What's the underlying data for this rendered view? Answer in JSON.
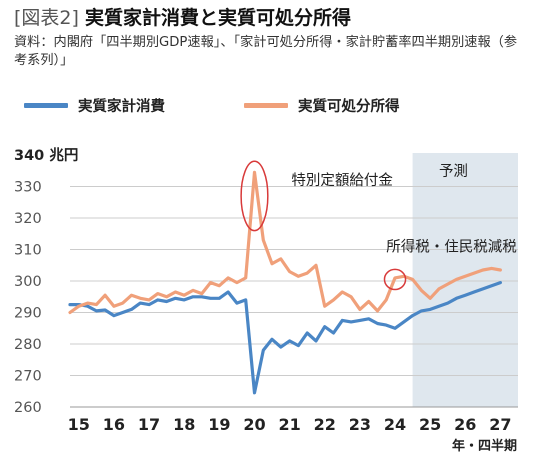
{
  "header": {
    "tag": "[図表2]",
    "title": "実質家計消費と実質可処分所得",
    "source": "資料：内閣府「四半期別GDP速報」、「家計可処分所得・家計貯蓄率四半期別速報（参考系列）」"
  },
  "colors": {
    "consumption": "#4a86c5",
    "income": "#f0a07a",
    "forecast_band": "#dfe7ee",
    "highlight_circle": "#d83a3a",
    "grid": "#cccccc"
  },
  "chart_data": {
    "type": "line",
    "title": "実質家計消費と実質可処分所得",
    "ylabel": "兆円",
    "xlabel": "年・四半期",
    "ylim": [
      260,
      340
    ],
    "yticks": [
      260,
      270,
      280,
      290,
      300,
      310,
      320,
      330,
      340
    ],
    "yunit_label": "340 兆円",
    "xlim": [
      2015,
      2027.75
    ],
    "xticks": [
      {
        "x": 2015.25,
        "label": "15"
      },
      {
        "x": 2016.25,
        "label": "16"
      },
      {
        "x": 2017.25,
        "label": "17"
      },
      {
        "x": 2018.25,
        "label": "18"
      },
      {
        "x": 2019.25,
        "label": "19"
      },
      {
        "x": 2020.25,
        "label": "20"
      },
      {
        "x": 2021.25,
        "label": "21"
      },
      {
        "x": 2022.25,
        "label": "22"
      },
      {
        "x": 2023.25,
        "label": "23"
      },
      {
        "x": 2024.25,
        "label": "24"
      },
      {
        "x": 2025.25,
        "label": "25"
      },
      {
        "x": 2026.25,
        "label": "26"
      },
      {
        "x": 2027.25,
        "label": "27"
      }
    ],
    "forecast_start": 2024.75,
    "legend_position": "top",
    "grid": "horizontal",
    "series": [
      {
        "name": "実質家計消費",
        "color": "#4a86c5",
        "points": [
          [
            2015.0,
            292.5
          ],
          [
            2015.25,
            292.5
          ],
          [
            2015.5,
            292.0
          ],
          [
            2015.75,
            290.5
          ],
          [
            2016.0,
            290.8
          ],
          [
            2016.25,
            289.0
          ],
          [
            2016.5,
            290.0
          ],
          [
            2016.75,
            291.0
          ],
          [
            2017.0,
            293.0
          ],
          [
            2017.25,
            292.5
          ],
          [
            2017.5,
            294.0
          ],
          [
            2017.75,
            293.5
          ],
          [
            2018.0,
            294.5
          ],
          [
            2018.25,
            294.0
          ],
          [
            2018.5,
            295.0
          ],
          [
            2018.75,
            295.0
          ],
          [
            2019.0,
            294.5
          ],
          [
            2019.25,
            294.5
          ],
          [
            2019.5,
            296.5
          ],
          [
            2019.75,
            293.0
          ],
          [
            2020.0,
            294.0
          ],
          [
            2020.25,
            264.5
          ],
          [
            2020.5,
            278.0
          ],
          [
            2020.75,
            281.5
          ],
          [
            2021.0,
            279.0
          ],
          [
            2021.25,
            281.0
          ],
          [
            2021.5,
            279.5
          ],
          [
            2021.75,
            283.5
          ],
          [
            2022.0,
            281.0
          ],
          [
            2022.25,
            285.5
          ],
          [
            2022.5,
            283.5
          ],
          [
            2022.75,
            287.5
          ],
          [
            2023.0,
            287.0
          ],
          [
            2023.25,
            287.5
          ],
          [
            2023.5,
            288.0
          ],
          [
            2023.75,
            286.5
          ],
          [
            2024.0,
            286.0
          ],
          [
            2024.25,
            285.0
          ],
          [
            2024.5,
            287.0
          ],
          [
            2024.75,
            289.0
          ],
          [
            2025.0,
            290.5
          ],
          [
            2025.25,
            291.0
          ],
          [
            2025.5,
            292.0
          ],
          [
            2025.75,
            293.0
          ],
          [
            2026.0,
            294.5
          ],
          [
            2026.25,
            295.5
          ],
          [
            2026.5,
            296.5
          ],
          [
            2026.75,
            297.5
          ],
          [
            2027.0,
            298.5
          ],
          [
            2027.25,
            299.5
          ]
        ]
      },
      {
        "name": "実質可処分所得",
        "color": "#f0a07a",
        "points": [
          [
            2015.0,
            290.0
          ],
          [
            2015.25,
            292.0
          ],
          [
            2015.5,
            293.0
          ],
          [
            2015.75,
            292.5
          ],
          [
            2016.0,
            295.5
          ],
          [
            2016.25,
            292.0
          ],
          [
            2016.5,
            293.0
          ],
          [
            2016.75,
            295.5
          ],
          [
            2017.0,
            294.5
          ],
          [
            2017.25,
            294.0
          ],
          [
            2017.5,
            296.0
          ],
          [
            2017.75,
            295.0
          ],
          [
            2018.0,
            296.5
          ],
          [
            2018.25,
            295.5
          ],
          [
            2018.5,
            297.0
          ],
          [
            2018.75,
            296.0
          ],
          [
            2019.0,
            299.5
          ],
          [
            2019.25,
            298.5
          ],
          [
            2019.5,
            301.0
          ],
          [
            2019.75,
            299.5
          ],
          [
            2020.0,
            301.0
          ],
          [
            2020.25,
            334.5
          ],
          [
            2020.5,
            313.0
          ],
          [
            2020.75,
            305.5
          ],
          [
            2021.0,
            307.0
          ],
          [
            2021.25,
            303.0
          ],
          [
            2021.5,
            301.5
          ],
          [
            2021.75,
            302.5
          ],
          [
            2022.0,
            305.0
          ],
          [
            2022.25,
            292.0
          ],
          [
            2022.5,
            294.0
          ],
          [
            2022.75,
            296.5
          ],
          [
            2023.0,
            295.0
          ],
          [
            2023.25,
            291.0
          ],
          [
            2023.5,
            293.5
          ],
          [
            2023.75,
            290.5
          ],
          [
            2024.0,
            294.0
          ],
          [
            2024.25,
            301.0
          ],
          [
            2024.5,
            301.5
          ],
          [
            2024.75,
            300.5
          ],
          [
            2025.0,
            297.0
          ],
          [
            2025.25,
            294.5
          ],
          [
            2025.5,
            297.5
          ],
          [
            2025.75,
            299.0
          ],
          [
            2026.0,
            300.5
          ],
          [
            2026.25,
            301.5
          ],
          [
            2026.5,
            302.5
          ],
          [
            2026.75,
            303.5
          ],
          [
            2027.0,
            304.0
          ],
          [
            2027.25,
            303.5
          ]
        ]
      }
    ],
    "annotations": [
      {
        "text": "予測",
        "x": 2025.5,
        "y": 335
      },
      {
        "text": "特別定額給付金",
        "x": 2021.3,
        "y": 332
      },
      {
        "text": "所得税・住民税減税",
        "x": 2024.0,
        "y": 311
      }
    ],
    "highlights": [
      {
        "x": 2020.25,
        "y": 327,
        "rx_years": 0.38,
        "ry_units": 11
      },
      {
        "x": 2024.25,
        "y": 300.5,
        "rx_years": 0.3,
        "ry_units": 3.2
      }
    ]
  }
}
